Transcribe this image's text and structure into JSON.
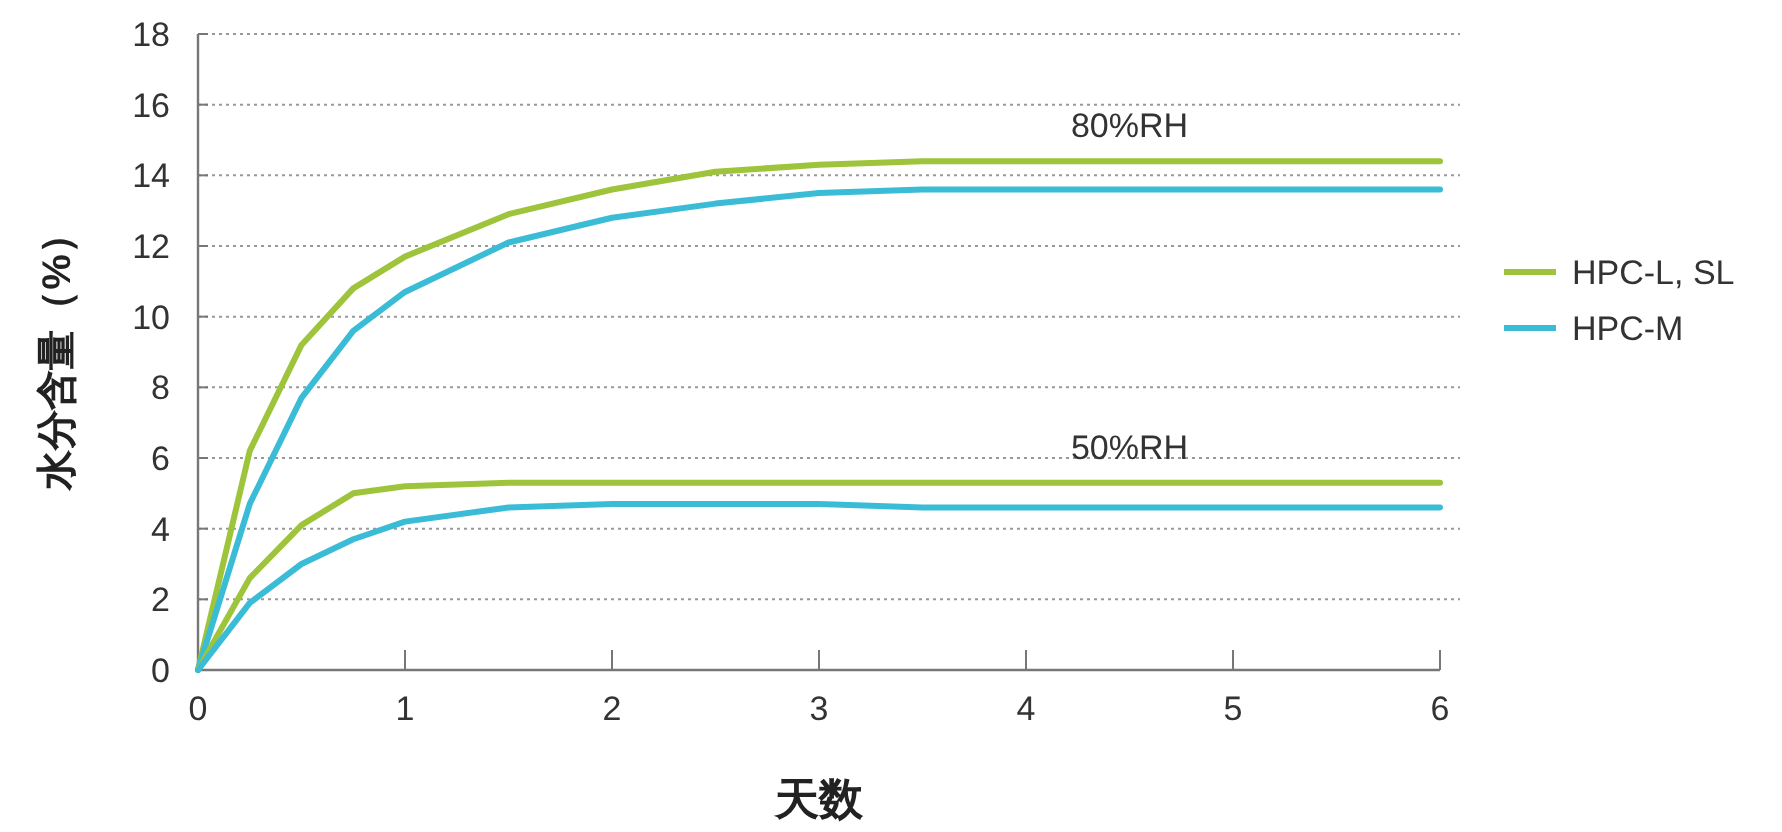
{
  "chart_data": {
    "type": "line",
    "xlabel": "天数",
    "ylabel": "水分含量（%）",
    "x": [
      0,
      0.25,
      0.5,
      0.75,
      1,
      1.5,
      2,
      2.5,
      3,
      3.5,
      4,
      5,
      6
    ],
    "series": [
      {
        "name": "HPC-L, SL",
        "color": "#9dc43a",
        "values": [
          0,
          6.2,
          9.2,
          10.8,
          11.7,
          12.9,
          13.6,
          14.1,
          14.3,
          14.4,
          14.4,
          14.4,
          14.4
        ]
      },
      {
        "name": "HPC-M",
        "color": "#3bbcd6",
        "values": [
          0,
          4.7,
          7.7,
          9.6,
          10.7,
          12.1,
          12.8,
          13.2,
          13.5,
          13.6,
          13.6,
          13.6,
          13.6
        ]
      },
      {
        "color": "#9dc43a",
        "values": [
          0,
          2.6,
          4.1,
          5.0,
          5.2,
          5.3,
          5.3,
          5.3,
          5.3,
          5.3,
          5.3,
          5.3,
          5.3
        ]
      },
      {
        "color": "#3bbcd6",
        "values": [
          0,
          1.9,
          3.0,
          3.7,
          4.2,
          4.6,
          4.7,
          4.7,
          4.7,
          4.6,
          4.6,
          4.6,
          4.6
        ]
      }
    ],
    "xlim": [
      0,
      6
    ],
    "xticks": [
      0,
      1,
      2,
      3,
      4,
      5,
      6
    ],
    "ylim": [
      0,
      18
    ],
    "yticks": [
      0,
      2,
      4,
      6,
      8,
      10,
      12,
      14,
      16,
      18
    ],
    "grid": "y",
    "legend": "right",
    "marker": "none",
    "line_style": "solid",
    "annotations": [
      {
        "text": "80%RH",
        "x": 4.5,
        "y": 14.4
      },
      {
        "text": "50%RH",
        "x": 4.5,
        "y": 5.3
      }
    ]
  }
}
